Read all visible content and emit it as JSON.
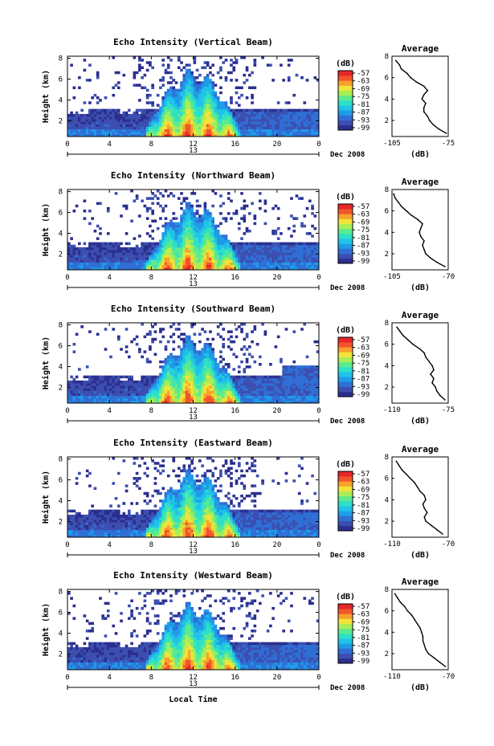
{
  "colors": {
    "colormap": [
      "#2b2f8f",
      "#3c4fb0",
      "#2f6fd6",
      "#1f9be8",
      "#21c2e8",
      "#2ee0c8",
      "#5cea8e",
      "#a9ee55",
      "#f2e33a",
      "#f8a12c",
      "#f4542c",
      "#e8262a"
    ]
  },
  "chart_data": [
    {
      "type": "heatmap",
      "title": "Echo Intensity (Vertical Beam)",
      "ylabel": "Height (km)",
      "yticks": [
        "2",
        "4",
        "6",
        "8"
      ],
      "xticks": [
        "0",
        "4",
        "8",
        "12",
        "16",
        "20",
        "0"
      ],
      "date_mid": "13",
      "date_label": "Dec 2008",
      "ylim": [
        0.5,
        8.2
      ],
      "xlim": [
        0,
        24
      ],
      "colorbar": {
        "unit": "(dB)",
        "ticks": [
          "-57",
          "-63",
          "-69",
          "-75",
          "-81",
          "-87",
          "-93",
          "-99"
        ]
      },
      "profile": {
        "title": "Average",
        "xlabel": "(dB)",
        "xticks": [
          "-105",
          "-75"
        ],
        "xlim": [
          -105,
          -75
        ],
        "yticks": [
          "2",
          "4",
          "6",
          "8"
        ],
        "ylim": [
          0.5,
          8.0
        ],
        "height_km": [
          0.8,
          1.2,
          1.6,
          2.0,
          2.4,
          2.8,
          3.2,
          3.6,
          4.0,
          4.4,
          4.8,
          5.2,
          5.6,
          6.0,
          6.4,
          6.8,
          7.2,
          7.6
        ],
        "db": [
          -76,
          -80,
          -83,
          -85,
          -86,
          -88,
          -88,
          -87,
          -89,
          -88,
          -86,
          -88,
          -92,
          -95,
          -97,
          -100,
          -101,
          -103
        ]
      }
    },
    {
      "type": "heatmap",
      "title": "Echo Intensity (Northward Beam)",
      "ylabel": "Height (km)",
      "yticks": [
        "2",
        "4",
        "6",
        "8"
      ],
      "xticks": [
        "0",
        "4",
        "8",
        "12",
        "16",
        "20",
        "0"
      ],
      "date_mid": "13",
      "date_label": "Dec 2008",
      "ylim": [
        0.5,
        8.2
      ],
      "xlim": [
        0,
        24
      ],
      "colorbar": {
        "unit": "(dB)",
        "ticks": [
          "-57",
          "-63",
          "-69",
          "-75",
          "-81",
          "-87",
          "-93",
          "-99"
        ]
      },
      "profile": {
        "title": "Average",
        "xlabel": "(dB)",
        "xticks": [
          "-105",
          "-70"
        ],
        "xlim": [
          -105,
          -70
        ],
        "yticks": [
          "2",
          "4",
          "6",
          "8"
        ],
        "ylim": [
          0.5,
          8.0
        ],
        "height_km": [
          0.8,
          1.2,
          1.6,
          2.0,
          2.4,
          2.8,
          3.2,
          3.6,
          4.0,
          4.4,
          4.8,
          5.2,
          5.6,
          6.0,
          6.4,
          6.8,
          7.2,
          7.6
        ],
        "db": [
          -72,
          -77,
          -81,
          -84,
          -85,
          -86,
          -85,
          -87,
          -88,
          -87,
          -86,
          -89,
          -93,
          -96,
          -99,
          -101,
          -103,
          -104
        ]
      }
    },
    {
      "type": "heatmap",
      "title": "Echo Intensity (Southward Beam)",
      "ylabel": "Height (km)",
      "yticks": [
        "2",
        "4",
        "6",
        "8"
      ],
      "xticks": [
        "0",
        "4",
        "8",
        "12",
        "16",
        "20",
        "0"
      ],
      "date_mid": "13",
      "date_label": "Dec 2008",
      "ylim": [
        0.5,
        8.2
      ],
      "xlim": [
        0,
        24
      ],
      "colorbar": {
        "unit": "(dB)",
        "ticks": [
          "-57",
          "-63",
          "-69",
          "-75",
          "-81",
          "-87",
          "-93",
          "-99"
        ]
      },
      "profile": {
        "title": "Average",
        "xlabel": "(dB)",
        "xticks": [
          "-110",
          "-75"
        ],
        "xlim": [
          -110,
          -75
        ],
        "yticks": [
          "2",
          "4",
          "6",
          "8"
        ],
        "ylim": [
          0.5,
          8.0
        ],
        "height_km": [
          0.8,
          1.2,
          1.6,
          2.0,
          2.4,
          2.8,
          3.2,
          3.6,
          4.0,
          4.4,
          4.8,
          5.2,
          5.6,
          6.0,
          6.4,
          6.8,
          7.2,
          7.6
        ],
        "db": [
          -77,
          -80,
          -82,
          -83,
          -85,
          -84,
          -86,
          -84,
          -85,
          -87,
          -89,
          -90,
          -93,
          -97,
          -100,
          -103,
          -105,
          -107
        ]
      }
    },
    {
      "type": "heatmap",
      "title": "Echo Intensity (Eastward Beam)",
      "ylabel": "Height (km)",
      "yticks": [
        "2",
        "4",
        "6",
        "8"
      ],
      "xticks": [
        "0",
        "4",
        "8",
        "12",
        "16",
        "20",
        "0"
      ],
      "date_mid": "13",
      "date_label": "Dec 2008",
      "ylim": [
        0.5,
        8.2
      ],
      "xlim": [
        0,
        24
      ],
      "colorbar": {
        "unit": "(dB)",
        "ticks": [
          "-57",
          "-63",
          "-69",
          "-75",
          "-81",
          "-87",
          "-93",
          "-99"
        ]
      },
      "profile": {
        "title": "Average",
        "xlabel": "(dB)",
        "xticks": [
          "-110",
          "-70"
        ],
        "xlim": [
          -110,
          -70
        ],
        "yticks": [
          "2",
          "4",
          "6",
          "8"
        ],
        "ylim": [
          0.5,
          8.0
        ],
        "height_km": [
          0.8,
          1.2,
          1.6,
          2.0,
          2.4,
          2.8,
          3.2,
          3.6,
          4.0,
          4.4,
          4.8,
          5.2,
          5.6,
          6.0,
          6.4,
          6.8,
          7.2,
          7.6
        ],
        "db": [
          -74,
          -78,
          -82,
          -86,
          -87,
          -85,
          -87,
          -88,
          -86,
          -87,
          -90,
          -92,
          -94,
          -97,
          -100,
          -103,
          -105,
          -107
        ]
      }
    },
    {
      "type": "heatmap",
      "title": "Echo Intensity (Westward Beam)",
      "ylabel": "Height (km)",
      "yticks": [
        "2",
        "4",
        "6",
        "8"
      ],
      "xticks": [
        "0",
        "4",
        "8",
        "12",
        "16",
        "20",
        "0"
      ],
      "date_mid": "13",
      "date_label": "Dec 2008",
      "ylim": [
        0.5,
        8.2
      ],
      "xlim": [
        0,
        24
      ],
      "colorbar": {
        "unit": "(dB)",
        "ticks": [
          "-57",
          "-63",
          "-69",
          "-75",
          "-81",
          "-87",
          "-93",
          "-99"
        ]
      },
      "profile": {
        "title": "Average",
        "xlabel": "(dB)",
        "xticks": [
          "-110",
          "-70"
        ],
        "xlim": [
          -110,
          -70
        ],
        "yticks": [
          "2",
          "4",
          "6",
          "8"
        ],
        "ylim": [
          0.5,
          8.0
        ],
        "height_km": [
          0.8,
          1.2,
          1.6,
          2.0,
          2.4,
          2.8,
          3.2,
          3.6,
          4.0,
          4.4,
          4.8,
          5.2,
          5.6,
          6.0,
          6.4,
          6.8,
          7.2,
          7.6
        ],
        "db": [
          -72,
          -76,
          -80,
          -84,
          -86,
          -87,
          -88,
          -88,
          -89,
          -90,
          -92,
          -94,
          -96,
          -99,
          -101,
          -104,
          -106,
          -108
        ]
      }
    }
  ],
  "shared_xlabel": "Local Time"
}
